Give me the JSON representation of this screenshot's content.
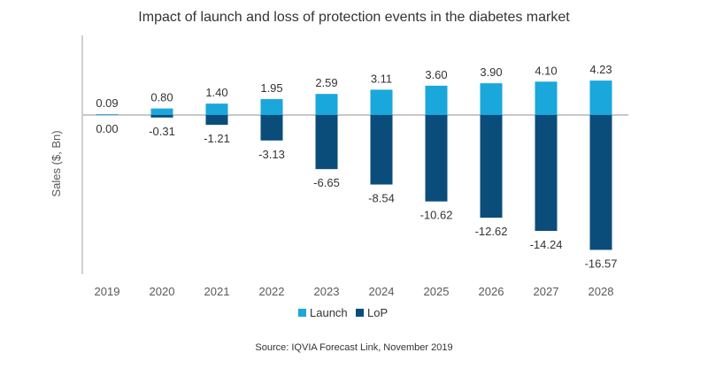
{
  "chart_data": {
    "type": "bar",
    "title": "Impact of launch and loss of protection events in the diabetes market",
    "xlabel": "",
    "ylabel": "Sales ($, Bn)",
    "categories": [
      "2019",
      "2020",
      "2021",
      "2022",
      "2023",
      "2024",
      "2025",
      "2026",
      "2027",
      "2028"
    ],
    "series": [
      {
        "name": "Launch",
        "color": "#1aa7dc",
        "values": [
          0.09,
          0.8,
          1.4,
          1.95,
          2.59,
          3.11,
          3.6,
          3.9,
          4.1,
          4.23
        ],
        "labels": [
          "0.09",
          "0.80",
          "1.40",
          "1.95",
          "2.59",
          "3.11",
          "3.60",
          "3.90",
          "4.10",
          "4.23"
        ]
      },
      {
        "name": "LoP",
        "color": "#0b4d7a",
        "values": [
          0.0,
          -0.31,
          -1.21,
          -3.13,
          -6.65,
          -8.54,
          -10.62,
          -12.62,
          -14.24,
          -16.57
        ],
        "labels": [
          "0.00",
          "-0.31",
          "-1.21",
          "-3.13",
          "-6.65",
          "-8.54",
          "-10.62",
          "-12.62",
          "-14.24",
          "-16.57"
        ]
      }
    ],
    "ylim": [
      -18,
      6
    ],
    "grid": false,
    "legend": "bottom-center",
    "source": "Source: IQVIA Forecast Link, November 2019"
  }
}
